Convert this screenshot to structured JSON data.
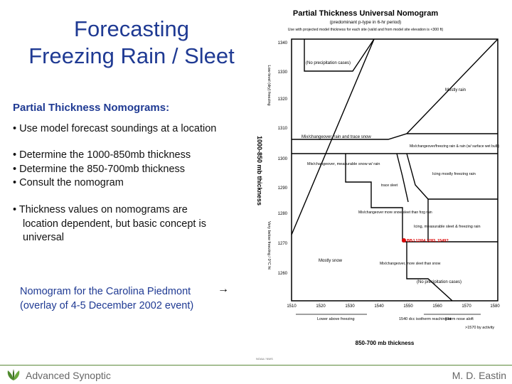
{
  "slide": {
    "title_line1": "Forecasting",
    "title_line2": "Freezing Rain / Sleet",
    "subheading": "Partial Thickness Nomograms:",
    "bullet1": "• Use model forecast soundings at a location",
    "bullet2": "• Determine the 1000-850mb thickness",
    "bullet3": "• Determine the 850-700mb thickness",
    "bullet4": "• Consult the nomogram",
    "bullet5_l1": "• Thickness values on nomograms are",
    "bullet5_l2": "location dependent, but basic concept is",
    "bullet5_l3": "universal",
    "caption_l1": "Nomogram for the Carolina Piedmont",
    "caption_l2": "(overlay of 4-5 December 2002 event)",
    "arrow": "→"
  },
  "footer": {
    "left": "Advanced Synoptic",
    "right": "M. D. Eastin"
  },
  "nomogram": {
    "title": "Partial Thickness Universal Nomogram",
    "subtitle1": "(predominant p-type in 6-hr period)",
    "subtitle2": "Use with projected model thickness for each site (valid and from model site elevation is <300 ft)",
    "y_axis_label": "1000-850 mb thickness",
    "x_axis_label": "850-700 mb thickness",
    "y_ticks": [
      "1340",
      "1330",
      "1320",
      "1310",
      "1300",
      "1290",
      "1280",
      "1270",
      "1260"
    ],
    "x_ticks": [
      "1510",
      "1520",
      "1530",
      "1540",
      "1550",
      "1560",
      "1570",
      "1580"
    ],
    "regions": {
      "no_precip_top": "(No precipitation cases)",
      "mostly_rain": "Mostly rain",
      "mix_snow_rain": "Mix/changeover, rain and trace snow",
      "mix_frz": "Mix/changeover/freezing rain & rain (w/ surface wet bulb)",
      "mix_measurable": "Mix/changeover, measurable snow w/ rain",
      "icing": "Icing  mostly freezing rain",
      "trace_sleet": "trace sleet",
      "mix_sleet": "Mix/changeover more snow/sleet than frzg rain",
      "icing_sleet": "Icing, measurable sleet & freezing rain",
      "mostly_snow": "Mostly snow",
      "mix_snow_sleet": "Mix/changeover, more sleet than snow",
      "no_precip_bottom": "(No precipitation cases)",
      "event": "BBJ 12/04 1283, 1549?"
    },
    "bottom_labels": {
      "lower": "Lower above freezing",
      "middle": "1540 dcc isotherm reaching ht",
      "warm": "Warm nose aloft",
      "right": ">1570 by activity"
    },
    "side_labels": {
      "upper": "Low-level (dry) freezing",
      "lower": "Very below freezing / 0°C ht"
    },
    "credit": "NOAA / NWS"
  }
}
